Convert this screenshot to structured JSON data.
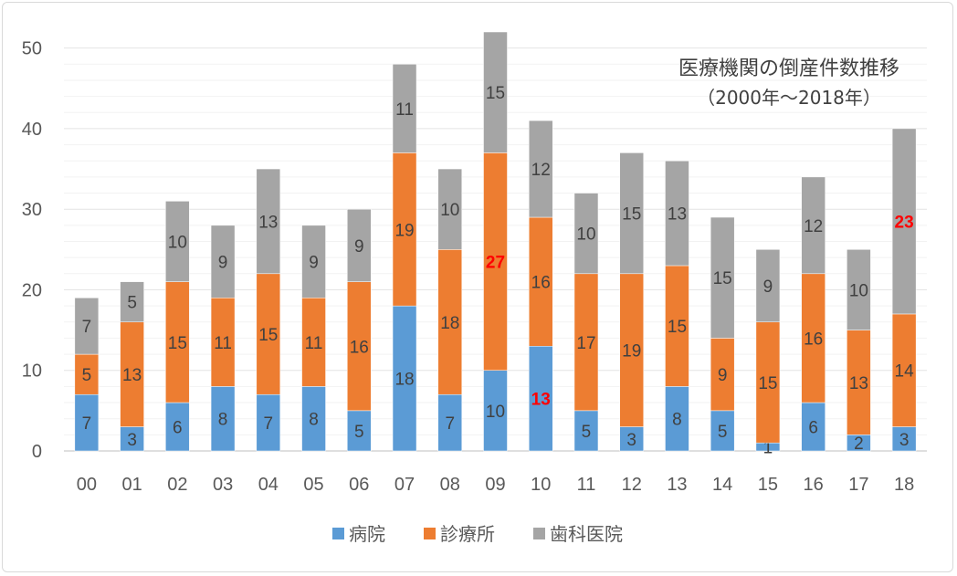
{
  "chart_data": {
    "type": "bar",
    "stacked": true,
    "title": "医療機関の倒産件数推移",
    "subtitle": "（2000年〜2018年）",
    "categories": [
      "00",
      "01",
      "02",
      "03",
      "04",
      "05",
      "06",
      "07",
      "08",
      "09",
      "10",
      "11",
      "12",
      "13",
      "14",
      "15",
      "16",
      "17",
      "18"
    ],
    "series": [
      {
        "name": "病院",
        "color": "#5b9bd5",
        "values": [
          7,
          3,
          6,
          8,
          7,
          8,
          5,
          18,
          7,
          10,
          13,
          5,
          3,
          8,
          5,
          1,
          6,
          2,
          3
        ]
      },
      {
        "name": "診療所",
        "color": "#ed7d31",
        "values": [
          5,
          13,
          15,
          11,
          15,
          11,
          16,
          19,
          18,
          27,
          16,
          17,
          19,
          15,
          9,
          15,
          16,
          13,
          14
        ]
      },
      {
        "name": "歯科医院",
        "color": "#a5a5a5",
        "values": [
          7,
          5,
          10,
          9,
          13,
          9,
          9,
          11,
          10,
          15,
          12,
          10,
          15,
          13,
          15,
          9,
          12,
          10,
          23
        ]
      }
    ],
    "highlighted_labels": [
      {
        "series": "病院",
        "category": "10"
      },
      {
        "series": "診療所",
        "category": "09"
      },
      {
        "series": "歯科医院",
        "category": "18"
      }
    ],
    "highlight_color": "#ff0000",
    "ylim": [
      0,
      52
    ],
    "yticks": [
      0,
      10,
      20,
      30,
      40,
      50
    ],
    "xlabel": "",
    "ylabel": "",
    "legend_position": "bottom",
    "grid": true
  }
}
